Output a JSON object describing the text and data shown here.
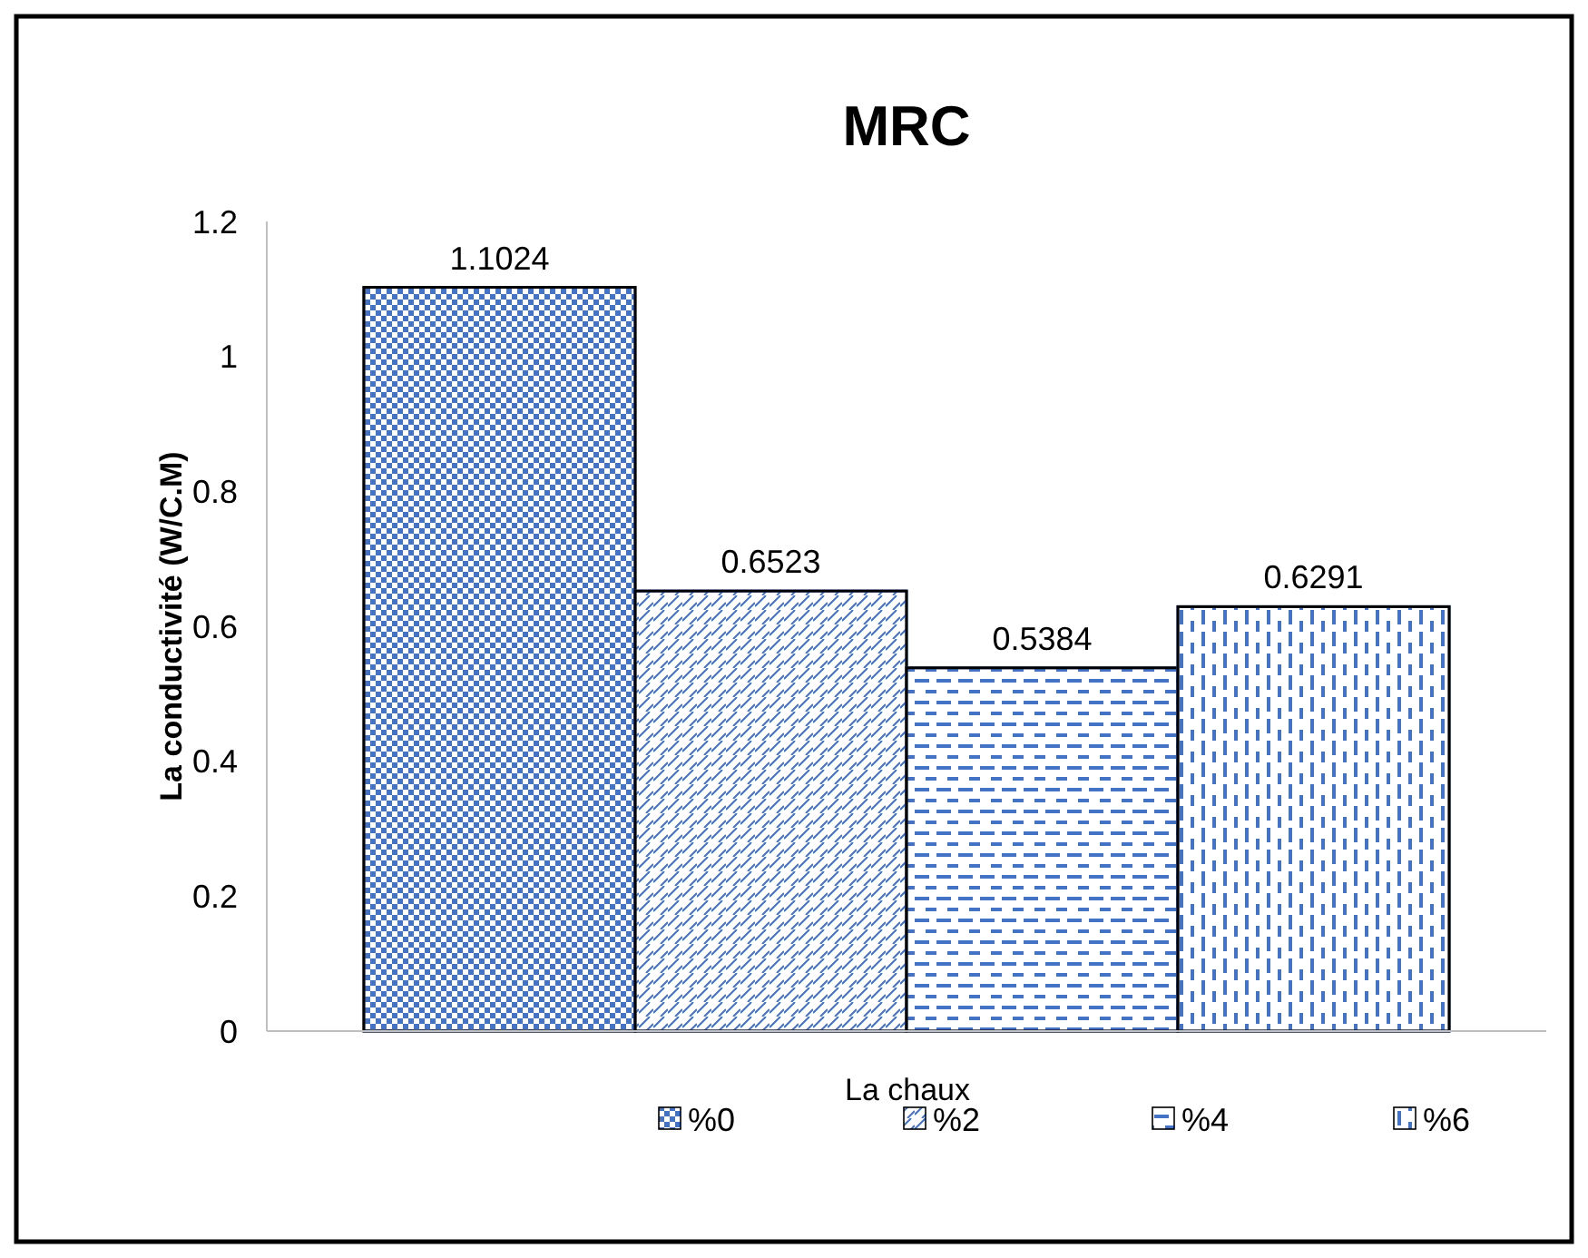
{
  "chart_data": {
    "type": "bar",
    "title": "MRC",
    "xlabel": "La chaux",
    "ylabel": "La conductivité (W/C.M)",
    "categories": [
      null
    ],
    "series": [
      {
        "name": "%0",
        "color": "#4472c4",
        "values": [
          1.1024
        ]
      },
      {
        "name": "%2",
        "color": "#4472c4",
        "values": [
          0.6523
        ]
      },
      {
        "name": "%4",
        "color": "#4472c4",
        "values": [
          0.5384
        ]
      },
      {
        "name": "%6",
        "color": "#4472c4",
        "values": [
          0.6291
        ]
      }
    ],
    "ylim": [
      0,
      1.2
    ],
    "yticks": [
      0,
      0.2,
      0.4,
      0.6,
      0.8,
      1,
      1.2
    ],
    "data_labels": true,
    "legend": "bottom"
  }
}
